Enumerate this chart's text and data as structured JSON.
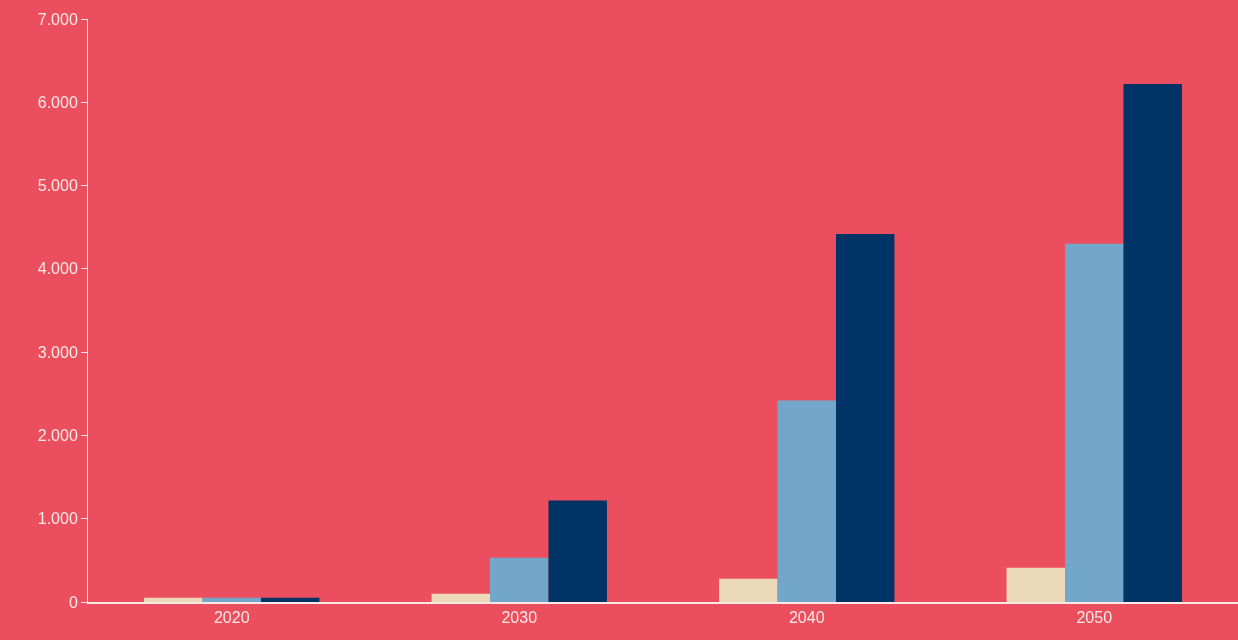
{
  "chart_data": {
    "type": "bar",
    "categories": [
      "2020",
      "2030",
      "2040",
      "2050"
    ],
    "series": [
      {
        "color": "#ecd9b9",
        "values": [
          50,
          100,
          280,
          410
        ]
      },
      {
        "color": "#72a7c9",
        "values": [
          50,
          530,
          2420,
          4300
        ]
      },
      {
        "color": "#003366",
        "values": [
          50,
          1220,
          4420,
          6220
        ]
      }
    ],
    "ylim": [
      0,
      7000
    ],
    "yticks": [
      {
        "value": 0,
        "label": "0"
      },
      {
        "value": 1000,
        "label": "1.000"
      },
      {
        "value": 2000,
        "label": "2.000"
      },
      {
        "value": 3000,
        "label": "3.000"
      },
      {
        "value": 4000,
        "label": "4.000"
      },
      {
        "value": 5000,
        "label": "5.000"
      },
      {
        "value": 6000,
        "label": "6.000"
      },
      {
        "value": 7000,
        "label": "7.000"
      }
    ],
    "grid": false
  }
}
